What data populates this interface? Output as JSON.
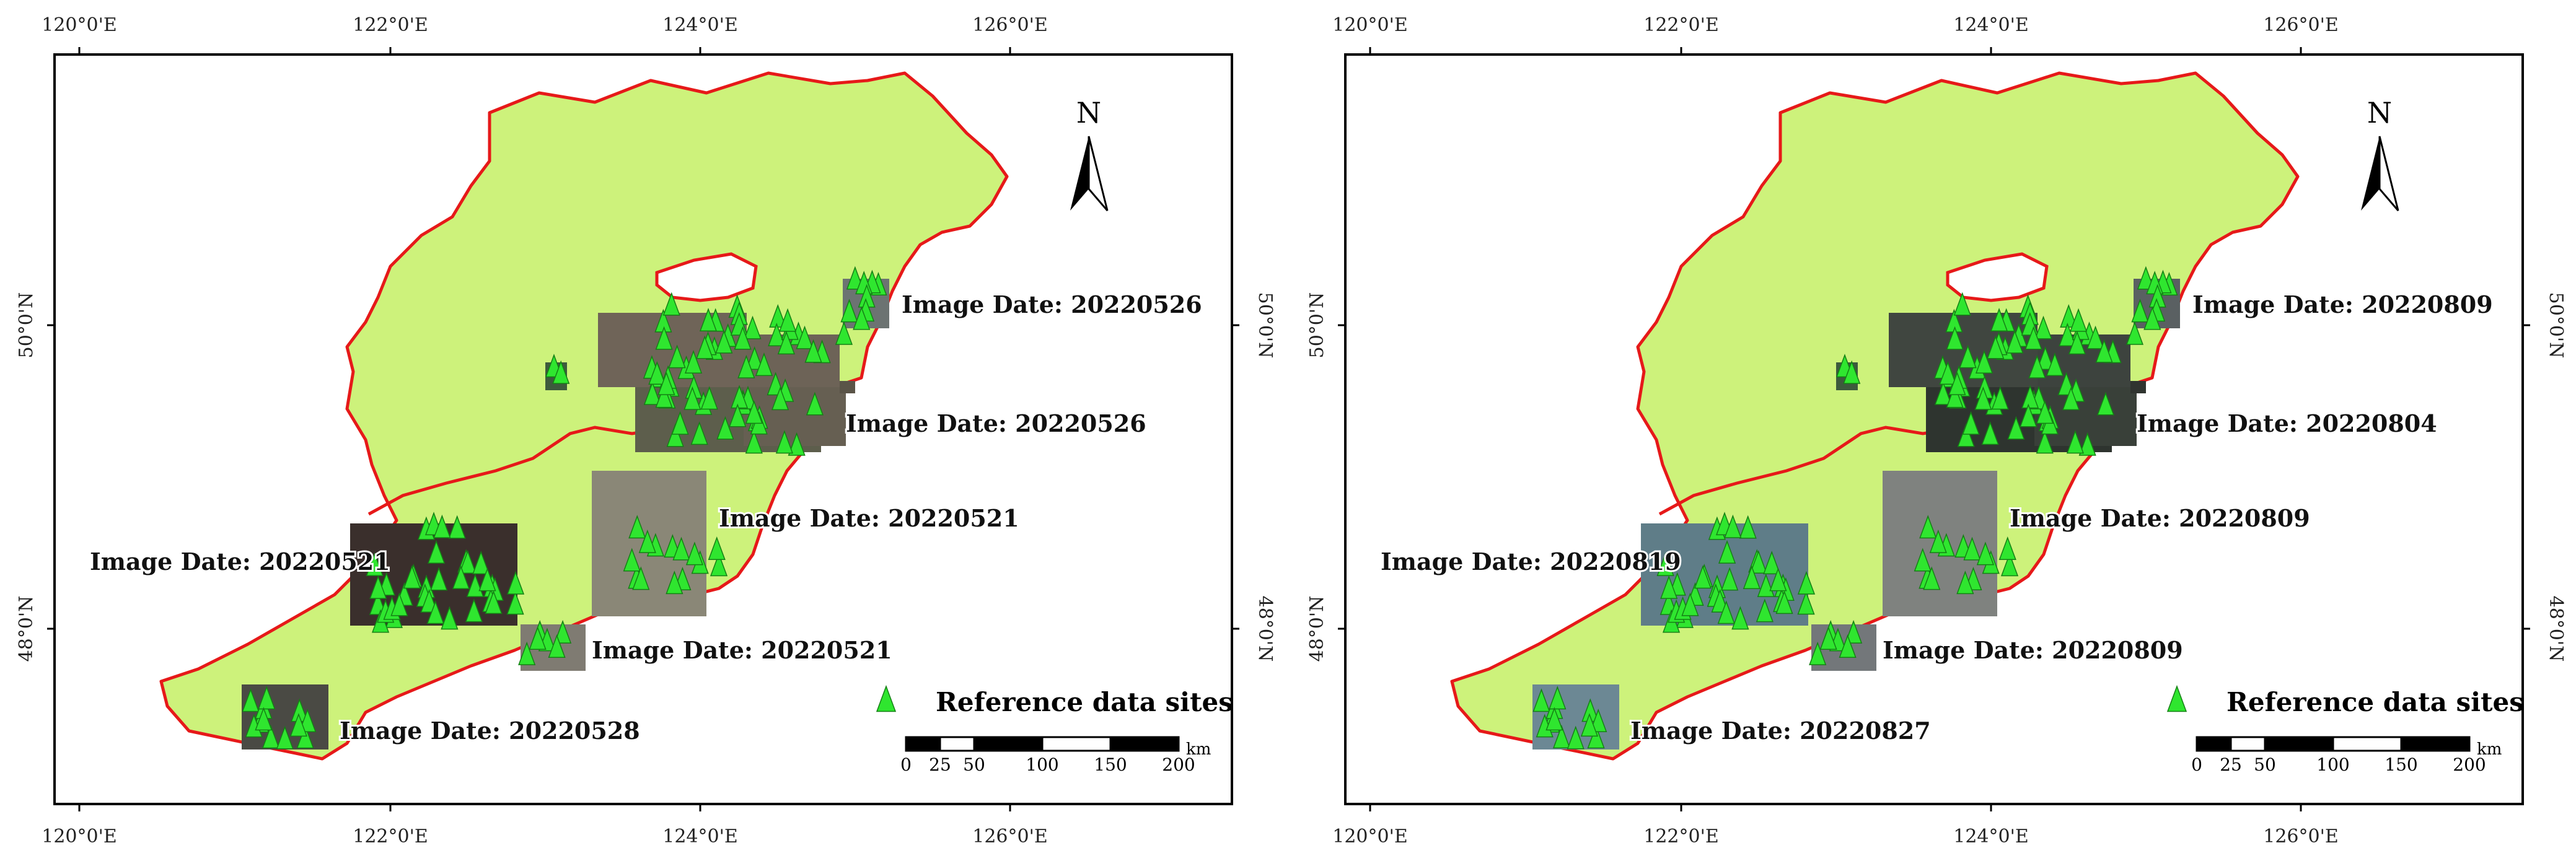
{
  "maps": [
    {
      "id": "left",
      "annotations": [
        "Image Date: 20220526",
        "Image Date: 20220526",
        "Image Date: 20220521",
        "Image Date: 20220521",
        "Image Date: 20220521",
        "Image Date: 20220528"
      ]
    },
    {
      "id": "right",
      "annotations": [
        "Image Date: 20220809",
        "Image Date: 20220804",
        "Image Date: 20220809",
        "Image Date: 20220819",
        "Image Date: 20220809",
        "Image Date: 20220827"
      ]
    }
  ],
  "lon_ticks": [
    "120°0'E",
    "122°0'E",
    "124°0'E",
    "126°0'E"
  ],
  "lat_ticks": [
    "50°0'N",
    "48°0'N"
  ],
  "north_label": "N",
  "legend": {
    "marker_label": "Reference data sites"
  },
  "scalebar": {
    "ticks": [
      "0",
      "25",
      "50",
      "100",
      "150",
      "200"
    ],
    "unit": "km"
  },
  "colors": {
    "land": "#cdf27b",
    "boundary": "#e61919",
    "marker": "#2fe62f",
    "marker_edge": "#158015",
    "frame": "#000000"
  }
}
